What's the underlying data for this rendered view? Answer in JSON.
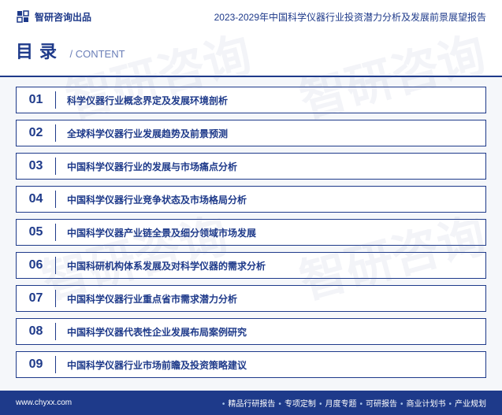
{
  "header": {
    "brand": "智研咨询出品",
    "report_title": "2023-2029年中国科学仪器行业投资潜力分析及发展前景展望报告"
  },
  "title": {
    "cn": "目录",
    "en": "/ CONTENT"
  },
  "toc": [
    {
      "num": "01",
      "text": "科学仪器行业概念界定及发展环境剖析"
    },
    {
      "num": "02",
      "text": "全球科学仪器行业发展趋势及前景预测"
    },
    {
      "num": "03",
      "text": "中国科学仪器行业的发展与市场痛点分析"
    },
    {
      "num": "04",
      "text": "中国科学仪器行业竞争状态及市场格局分析"
    },
    {
      "num": "05",
      "text": "中国科学仪器产业链全景及细分领域市场发展"
    },
    {
      "num": "06",
      "text": "中国科研机构体系发展及对科学仪器的需求分析"
    },
    {
      "num": "07",
      "text": "中国科学仪器行业重点省市需求潜力分析"
    },
    {
      "num": "08",
      "text": "中国科学仪器代表性企业发展布局案例研究"
    },
    {
      "num": "09",
      "text": "中国科学仪器行业市场前瞻及投资策略建议"
    }
  ],
  "footer": {
    "url": "www.chyxx.com",
    "links": [
      "精品行研报告",
      "专项定制",
      "月度专题",
      "可研报告",
      "商业计划书",
      "产业规划"
    ]
  },
  "watermark": "智研咨询",
  "colors": {
    "primary": "#1e3a8a",
    "bg": "#f5f7fa",
    "white": "#ffffff"
  }
}
